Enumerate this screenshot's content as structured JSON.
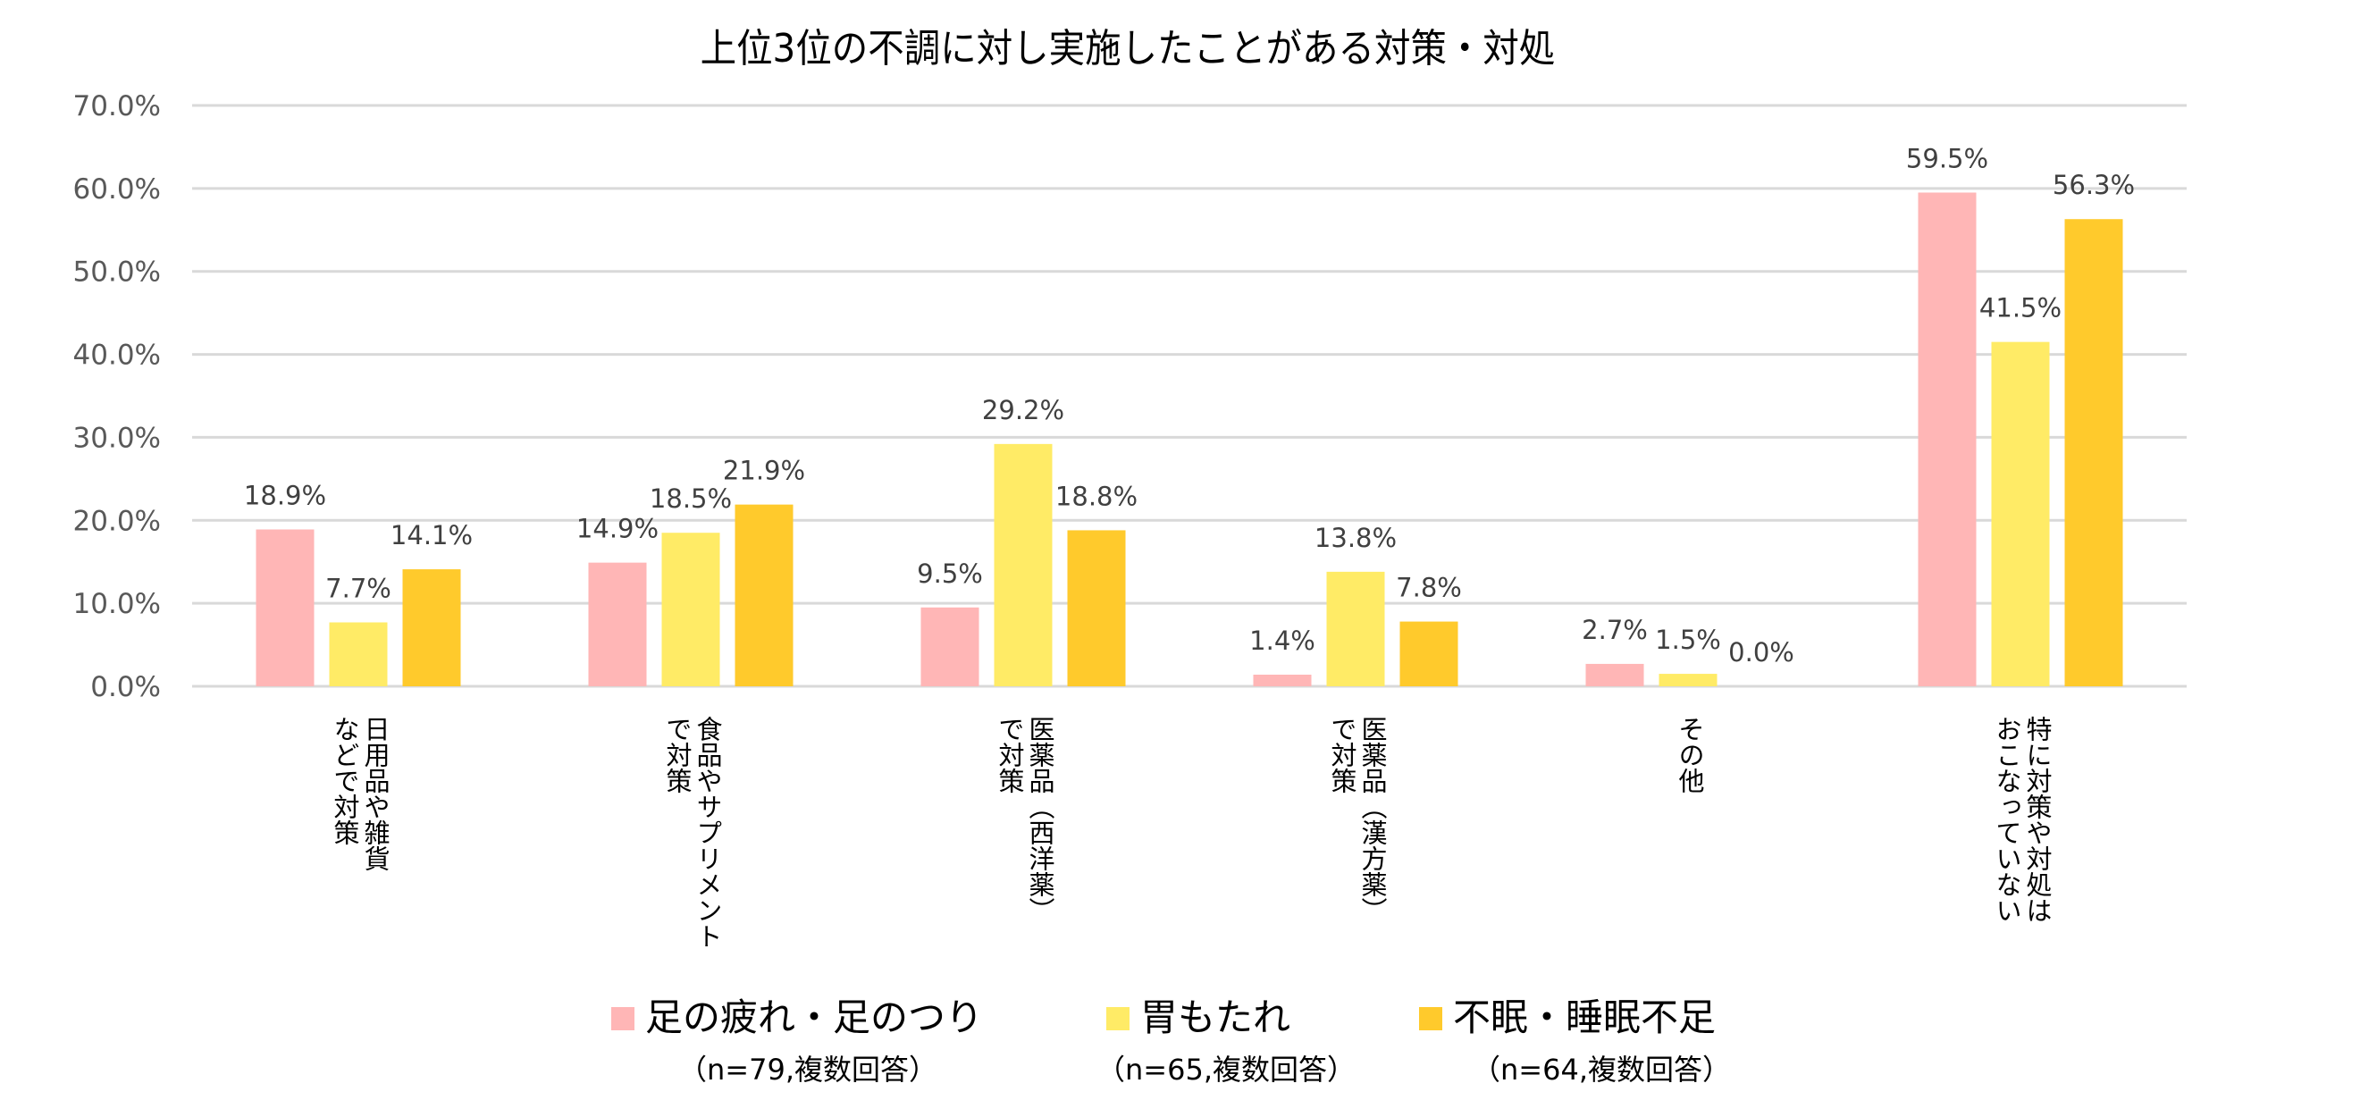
{
  "chart_data": {
    "type": "bar",
    "title": "上位3位の不調に対し実施したことがある対策・対処",
    "categories": [
      [
        "日用品や雑貨",
        "などで対策"
      ],
      [
        "食品やサプリメント",
        "で対策"
      ],
      [
        "医薬品（西洋薬）",
        "で対策"
      ],
      [
        "医薬品（漢方薬）",
        "で対策"
      ],
      [
        "その他"
      ],
      [
        "特に対策や対処は",
        "おこなっていない"
      ]
    ],
    "series": [
      {
        "name": "足の疲れ・足のつり",
        "note": "（n=79,複数回答）",
        "color": "#FFB6B6",
        "values": [
          18.9,
          14.9,
          9.5,
          1.4,
          2.7,
          59.5
        ]
      },
      {
        "name": "胃もたれ",
        "note": "（n=65,複数回答）",
        "color": "#FFEB66",
        "values": [
          7.7,
          18.5,
          29.2,
          13.8,
          1.5,
          41.5
        ]
      },
      {
        "name": "不眠・睡眠不足",
        "note": "（n=64,複数回答）",
        "color": "#FFCA2C",
        "values": [
          14.1,
          21.9,
          18.8,
          7.8,
          0.0,
          56.3
        ]
      }
    ],
    "ylim": [
      0,
      70
    ],
    "yticks": [
      "0.0%",
      "10.0%",
      "20.0%",
      "30.0%",
      "40.0%",
      "50.0%",
      "60.0%",
      "70.0%"
    ],
    "grid": true,
    "legend_position": "bottom",
    "xlabel": "",
    "ylabel": ""
  }
}
